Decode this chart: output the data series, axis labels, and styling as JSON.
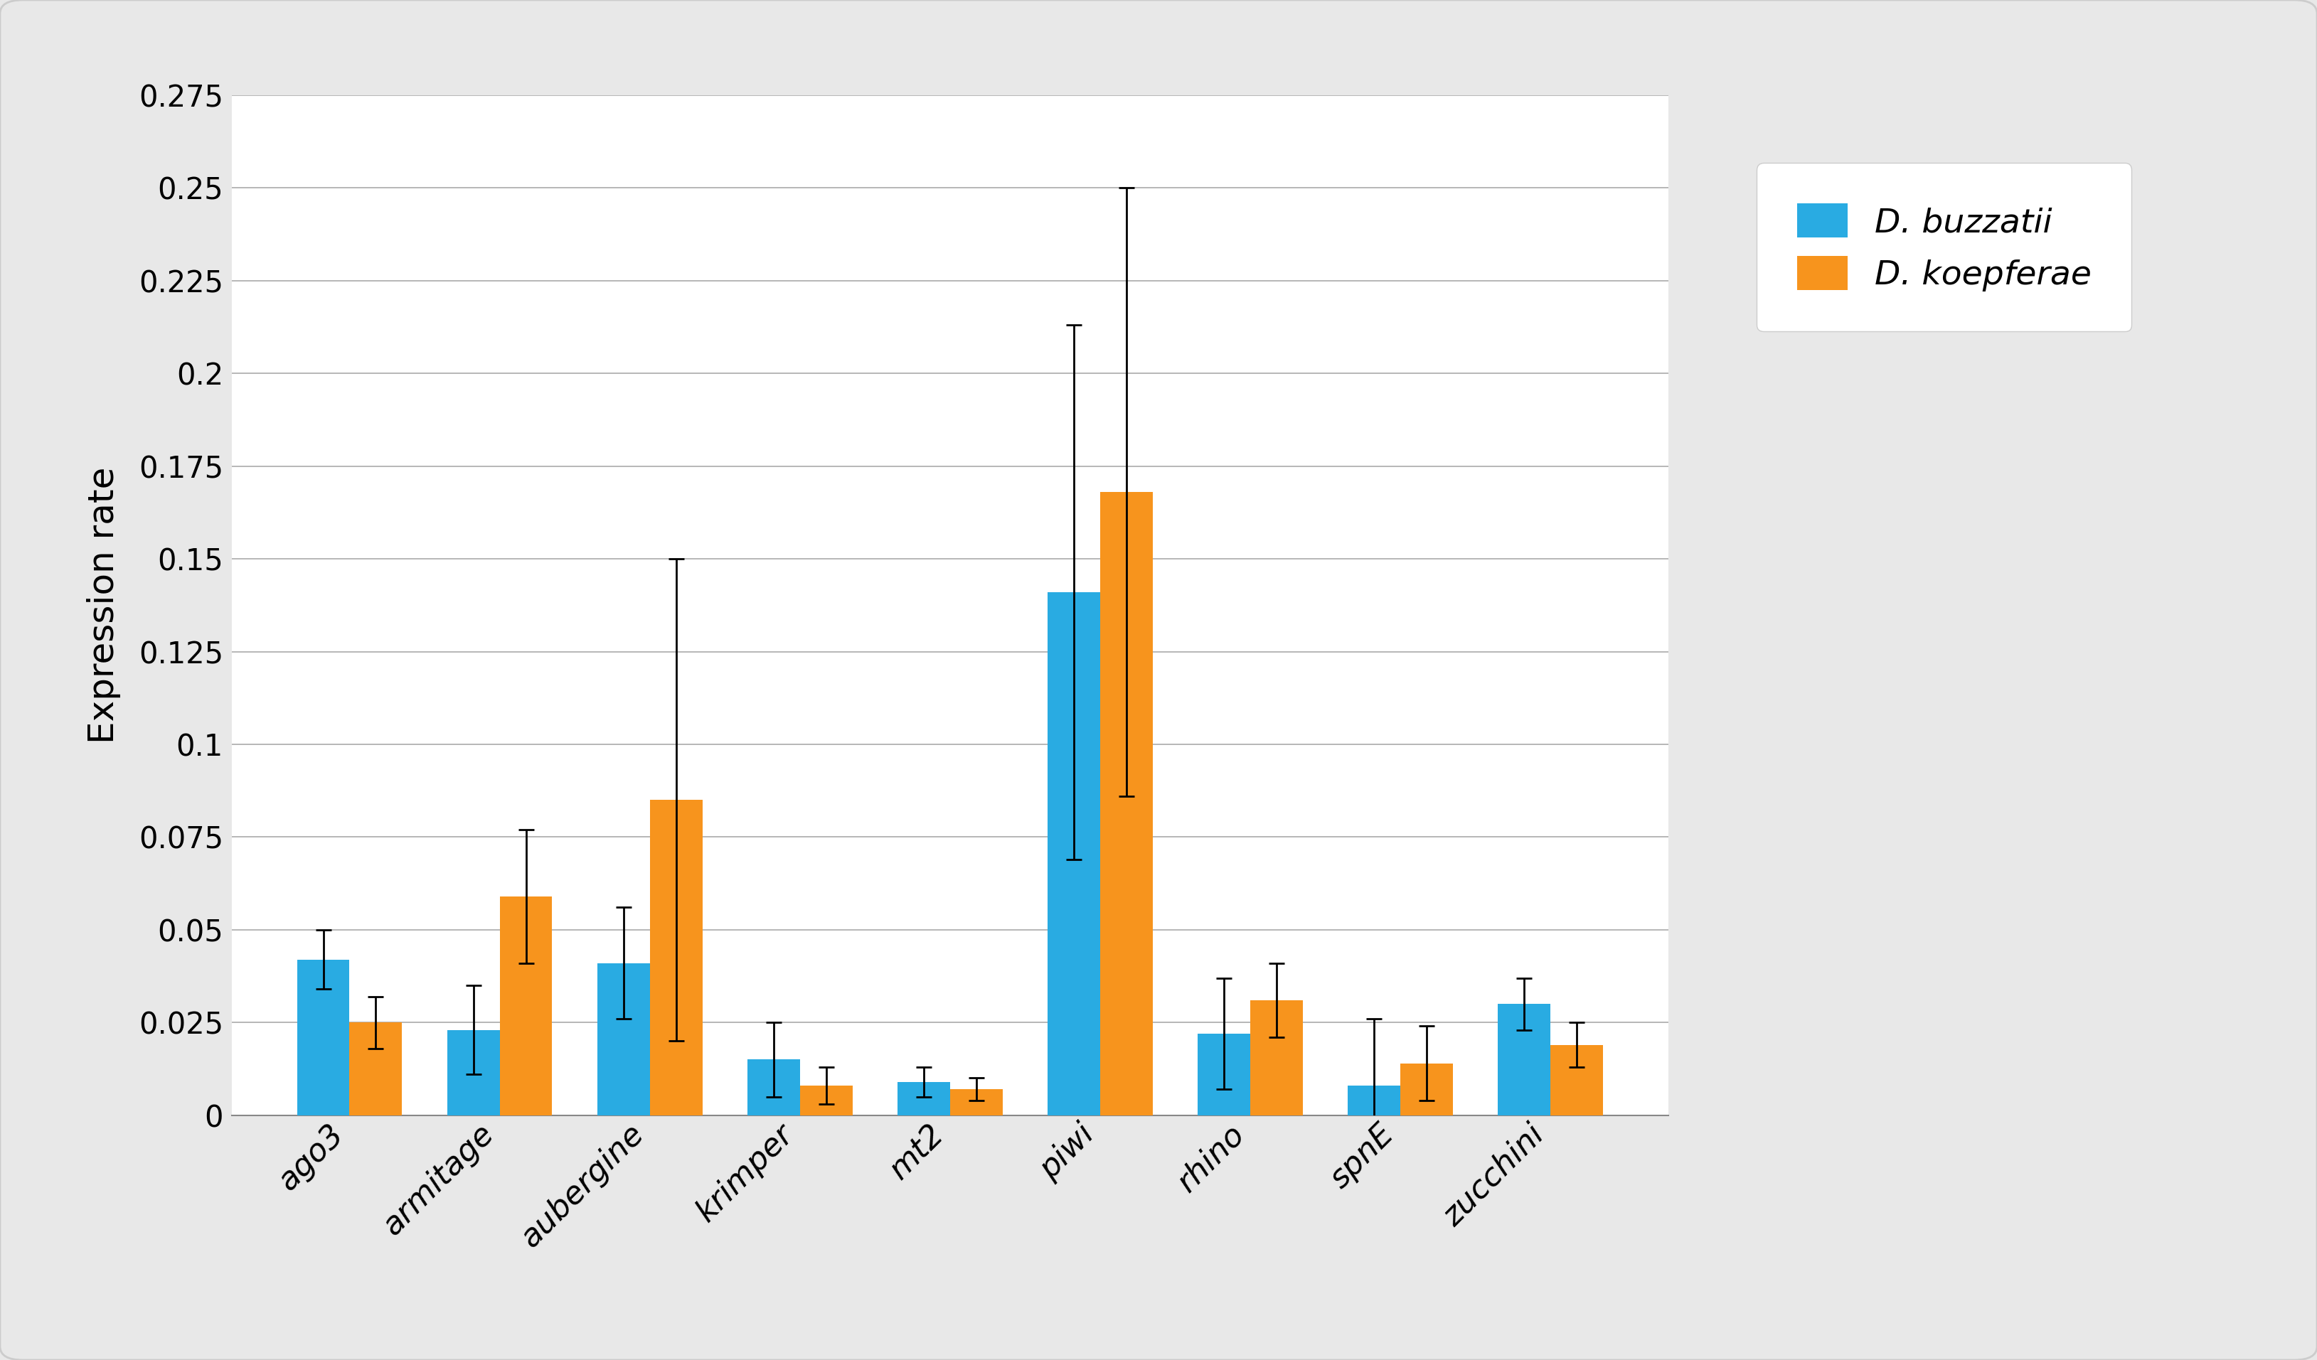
{
  "categories": [
    "ago3",
    "armitage",
    "aubergine",
    "krimper",
    "mt2",
    "piwi",
    "rhino",
    "spnE",
    "zucchini"
  ],
  "buzzatii_values": [
    0.042,
    0.023,
    0.041,
    0.015,
    0.009,
    0.141,
    0.022,
    0.008,
    0.03
  ],
  "koepferae_values": [
    0.025,
    0.059,
    0.085,
    0.008,
    0.007,
    0.168,
    0.031,
    0.014,
    0.019
  ],
  "buzzatii_errors": [
    0.008,
    0.012,
    0.015,
    0.01,
    0.004,
    0.072,
    0.015,
    0.018,
    0.007
  ],
  "koepferae_errors": [
    0.007,
    0.018,
    0.065,
    0.005,
    0.003,
    0.082,
    0.01,
    0.01,
    0.006
  ],
  "buzzatii_color": "#29ABE2",
  "koepferae_color": "#F7941D",
  "ylabel": "Expression rate",
  "ylim": [
    0,
    0.275
  ],
  "yticks": [
    0,
    0.025,
    0.05,
    0.075,
    0.1,
    0.125,
    0.15,
    0.175,
    0.2,
    0.225,
    0.25,
    0.275
  ],
  "ytick_labels": [
    "0",
    "0.025",
    "0.05",
    "0.075",
    "0.1",
    "0.125",
    "0.15",
    "0.175",
    "0.2",
    "0.225",
    "0.25",
    "0.275"
  ],
  "legend_buzzatii": "D. buzzatii",
  "legend_koepferae": "D. koepferae",
  "bar_width": 0.35,
  "plot_bg": "#ffffff",
  "figure_bg": "#e8e8e8",
  "grid_color": "#aaaaaa",
  "spine_color": "#888888"
}
